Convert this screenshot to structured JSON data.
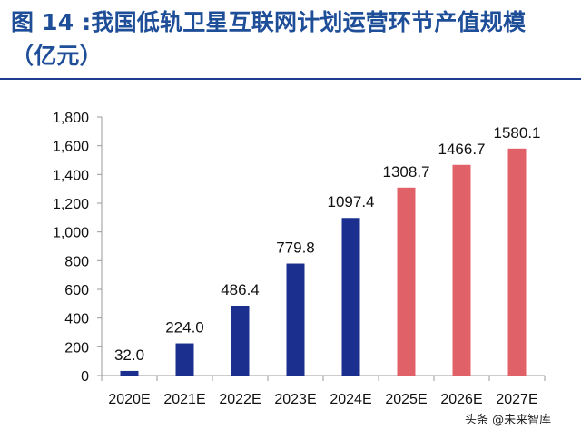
{
  "header": {
    "title": "图 14 :我国低轨卫星互联网计划运营环节产值规模",
    "unit": "（亿元）"
  },
  "watermark": "头条 @未来智库",
  "colors": {
    "actual": "#1b2f8e",
    "forecast": "#e06268",
    "title": "#1f4e99"
  },
  "chart_data": {
    "type": "bar",
    "categories": [
      "2020E",
      "2021E",
      "2022E",
      "2023E",
      "2024E",
      "2025E",
      "2026E",
      "2027E"
    ],
    "values": [
      32.0,
      224.0,
      486.4,
      779.8,
      1097.4,
      1308.7,
      1466.7,
      1580.1
    ],
    "data_labels": [
      "32.0",
      "224.0",
      "486.4",
      "779.8",
      "1097.4",
      "1308.7",
      "1466.7",
      "1580.1"
    ],
    "bar_colors": [
      "#1b2f8e",
      "#1b2f8e",
      "#1b2f8e",
      "#1b2f8e",
      "#1b2f8e",
      "#e06268",
      "#e06268",
      "#e06268"
    ],
    "yticks": [
      "0",
      "200",
      "400",
      "600",
      "800",
      "1,000",
      "1,200",
      "1,400",
      "1,600",
      "1,800"
    ],
    "ylim": [
      0,
      1800
    ],
    "grid": false,
    "title": "图 14 :我国低轨卫星互联网计划运营环节产值规模",
    "xlabel": "",
    "ylabel": "（亿元）"
  }
}
